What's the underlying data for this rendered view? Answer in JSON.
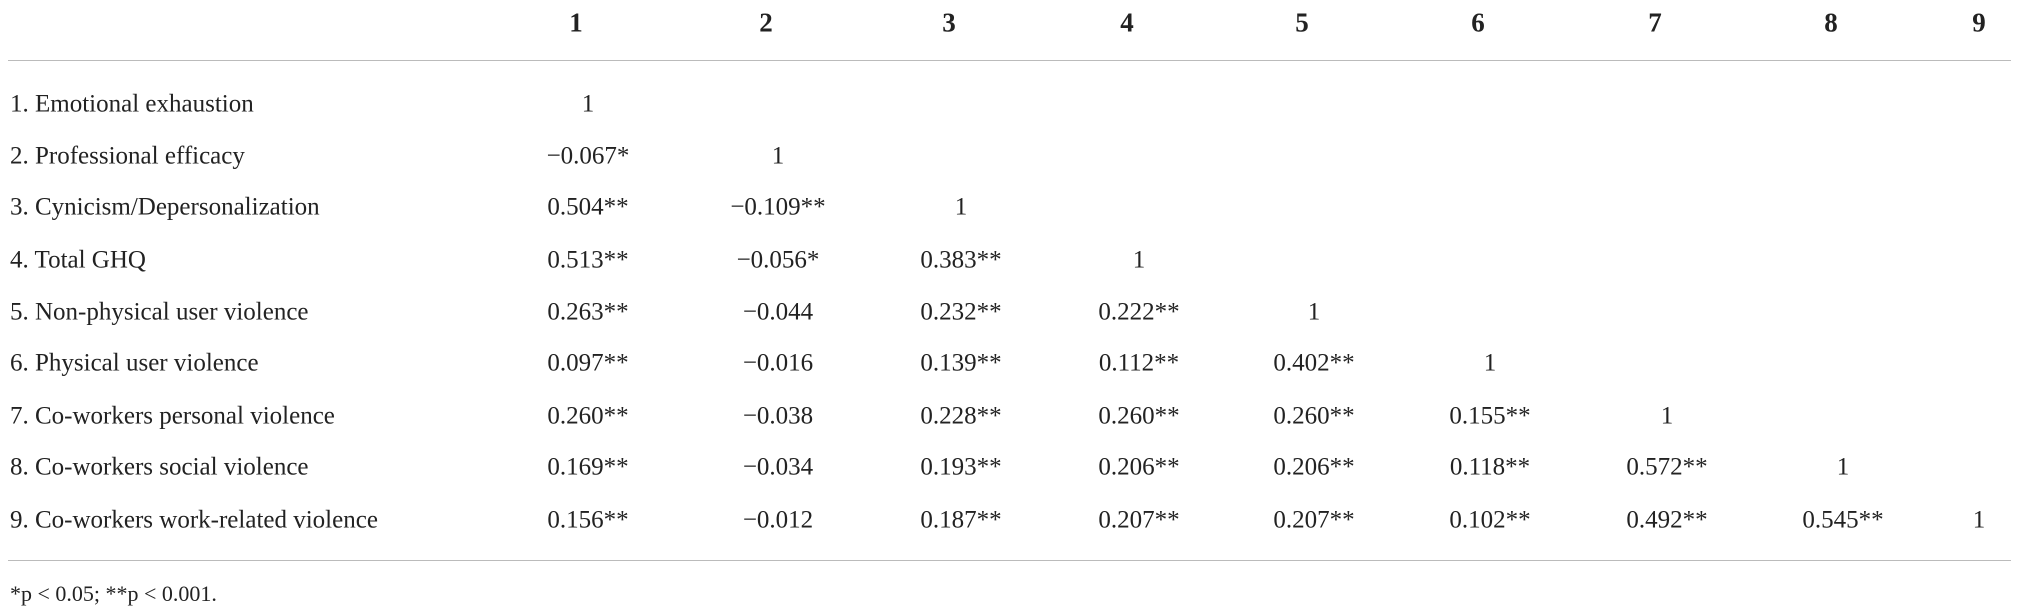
{
  "table": {
    "header": [
      "1",
      "2",
      "3",
      "4",
      "5",
      "6",
      "7",
      "8",
      "9"
    ],
    "rows": [
      {
        "label": "1. Emotional exhaustion",
        "cells": [
          "1"
        ]
      },
      {
        "label": "2. Professional efficacy",
        "cells": [
          "−0.067*",
          "1"
        ]
      },
      {
        "label": "3. Cynicism/Depersonalization",
        "cells": [
          "0.504**",
          "−0.109**",
          "1"
        ]
      },
      {
        "label": "4. Total GHQ",
        "cells": [
          "0.513**",
          "−0.056*",
          "0.383**",
          "1"
        ]
      },
      {
        "label": "5. Non-physical user violence",
        "cells": [
          "0.263**",
          "−0.044",
          "0.232**",
          "0.222**",
          "1"
        ]
      },
      {
        "label": "6. Physical user violence",
        "cells": [
          "0.097**",
          "−0.016",
          "0.139**",
          "0.112**",
          "0.402**",
          "1"
        ]
      },
      {
        "label": "7. Co-workers personal violence",
        "cells": [
          "0.260**",
          "−0.038",
          "0.228**",
          "0.260**",
          "0.260**",
          "0.155**",
          "1"
        ]
      },
      {
        "label": "8. Co-workers social violence",
        "cells": [
          "0.169**",
          "−0.034",
          "0.193**",
          "0.206**",
          "0.206**",
          "0.118**",
          "0.572**",
          "1"
        ]
      },
      {
        "label": "9. Co-workers work-related violence",
        "cells": [
          "0.156**",
          "−0.012",
          "0.187**",
          "0.207**",
          "0.207**",
          "0.102**",
          "0.492**",
          "0.545**",
          "1"
        ]
      }
    ],
    "footnote": "*p < 0.05; **p < 0.001."
  }
}
